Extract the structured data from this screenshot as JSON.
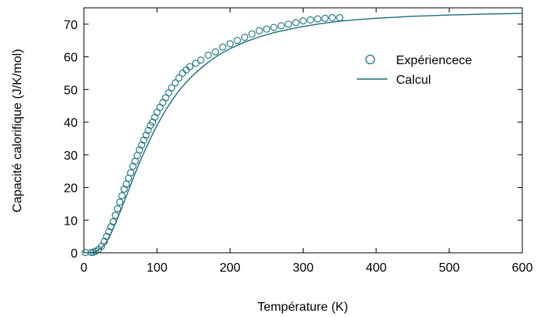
{
  "chart_data": {
    "type": "scatter",
    "xlabel": "Température (K)",
    "ylabel": "Capacité calorifique (J/K/mol)",
    "xlim": [
      0,
      600
    ],
    "ylim": [
      0,
      75
    ],
    "xticks": [
      0,
      100,
      200,
      300,
      400,
      500,
      600
    ],
    "yticks": [
      0,
      10,
      20,
      30,
      40,
      50,
      60,
      70
    ],
    "grid": false,
    "legend": "right",
    "series": [
      {
        "name": "Expériencece",
        "type": "scatter",
        "marker": "open-circle",
        "color": "#1a6e7a",
        "x": [
          2,
          10,
          13,
          16,
          20,
          24,
          28,
          31,
          34,
          37,
          40,
          43,
          46,
          49,
          52,
          55,
          58,
          61,
          64,
          67,
          70,
          73,
          76,
          79,
          82,
          85,
          88,
          91,
          94,
          97,
          100,
          104,
          108,
          112,
          116,
          120,
          125,
          130,
          135,
          140,
          145,
          153,
          160,
          170,
          180,
          190,
          200,
          210,
          220,
          230,
          240,
          250,
          260,
          270,
          280,
          290,
          300,
          310,
          320,
          330,
          340,
          350
        ],
        "y": [
          0.1,
          0.1,
          0.2,
          0.5,
          1.0,
          2.0,
          3.5,
          5.0,
          6.5,
          8.0,
          9.5,
          11.5,
          13.5,
          15.5,
          17.5,
          19.5,
          21.0,
          22.8,
          24.5,
          26.5,
          28.0,
          29.8,
          31.5,
          33.0,
          34.5,
          36.0,
          37.5,
          39.0,
          40.0,
          41.5,
          43.0,
          44.5,
          46.0,
          47.5,
          49.0,
          50.5,
          52.0,
          53.5,
          55.0,
          56.0,
          57.0,
          58.0,
          59.0,
          60.5,
          61.5,
          63.0,
          64.0,
          65.0,
          66.0,
          67.0,
          68.0,
          68.5,
          69.0,
          69.5,
          70.0,
          70.5,
          71.0,
          71.3,
          71.6,
          71.8,
          72.0,
          72.0
        ]
      },
      {
        "name": "Calcul",
        "type": "line",
        "color": "#1a6e7a",
        "x": [
          0,
          10,
          15,
          20,
          25,
          30,
          35,
          40,
          45,
          50,
          55,
          60,
          65,
          70,
          75,
          80,
          85,
          90,
          95,
          100,
          110,
          120,
          130,
          140,
          150,
          160,
          170,
          180,
          190,
          200,
          220,
          240,
          260,
          280,
          300,
          325,
          350,
          375,
          400,
          450,
          500,
          550,
          600
        ],
        "y": [
          0,
          0.1,
          0.3,
          0.8,
          1.7,
          3.0,
          5.0,
          7.4,
          10.0,
          12.8,
          15.6,
          18.5,
          21.4,
          24.3,
          27.0,
          29.6,
          32.1,
          34.5,
          36.8,
          39.0,
          43.0,
          46.5,
          49.6,
          52.2,
          54.5,
          56.5,
          58.3,
          59.9,
          61.3,
          62.5,
          64.5,
          66.1,
          67.4,
          68.4,
          69.3,
          70.2,
          70.9,
          71.4,
          71.8,
          72.4,
          72.8,
          73.1,
          73.3
        ]
      }
    ]
  }
}
